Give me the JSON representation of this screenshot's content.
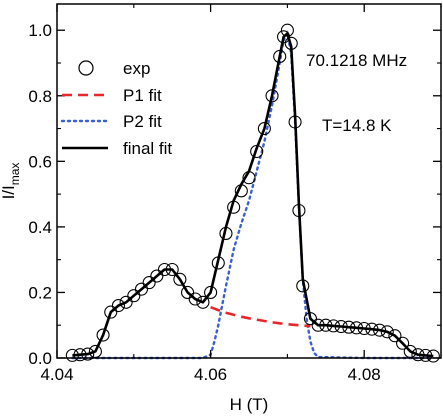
{
  "chart_data": {
    "type": "line",
    "xlabel": "H (T)",
    "ylabel": "I/I",
    "ylabel_subscript": "max",
    "xlim": [
      4.04,
      4.09
    ],
    "ylim": [
      0.0,
      1.08
    ],
    "xticks": [
      4.04,
      4.06,
      4.08
    ],
    "xtick_labels": [
      "4.04",
      "4.06",
      "4.08"
    ],
    "yticks": [
      0.0,
      0.2,
      0.4,
      0.6,
      0.8,
      1.0
    ],
    "ytick_labels": [
      "0.0",
      "0.2",
      "0.4",
      "0.6",
      "0.8",
      "1.0"
    ],
    "grid": false,
    "legend_position": "upper-left",
    "annotations": [
      "70.1218 MHz",
      "T=14.8 K"
    ],
    "series": [
      {
        "name": "exp",
        "style": "open-circle",
        "color": "#000000",
        "x": [
          4.042,
          4.043,
          4.044,
          4.045,
          4.046,
          4.047,
          4.048,
          4.049,
          4.05,
          4.051,
          4.052,
          4.053,
          4.054,
          4.055,
          4.056,
          4.057,
          4.058,
          4.059,
          4.06,
          4.061,
          4.062,
          4.063,
          4.064,
          4.065,
          4.066,
          4.067,
          4.068,
          4.069,
          4.0695,
          4.07,
          4.0705,
          4.071,
          4.0715,
          4.072,
          4.073,
          4.074,
          4.075,
          4.076,
          4.077,
          4.078,
          4.079,
          4.08,
          4.081,
          4.082,
          4.083,
          4.084,
          4.085,
          4.086,
          4.087,
          4.088,
          4.089
        ],
        "y": [
          0.008,
          0.01,
          0.012,
          0.02,
          0.07,
          0.14,
          0.16,
          0.17,
          0.19,
          0.21,
          0.23,
          0.25,
          0.27,
          0.27,
          0.24,
          0.2,
          0.18,
          0.17,
          0.2,
          0.29,
          0.38,
          0.46,
          0.51,
          0.55,
          0.63,
          0.7,
          0.8,
          0.92,
          0.98,
          1.0,
          0.96,
          0.72,
          0.45,
          0.22,
          0.12,
          0.1,
          0.1,
          0.098,
          0.096,
          0.094,
          0.092,
          0.09,
          0.088,
          0.085,
          0.08,
          0.068,
          0.045,
          0.02,
          0.01,
          0.008,
          0.006
        ]
      },
      {
        "name": "P1 fit",
        "style": "dashed",
        "color": "#e8272b",
        "x": [
          4.06,
          4.061,
          4.062,
          4.063,
          4.064,
          4.065,
          4.066,
          4.067,
          4.068,
          4.069,
          4.07,
          4.071,
          4.072,
          4.073
        ],
        "y": [
          0.155,
          0.146,
          0.138,
          0.132,
          0.126,
          0.121,
          0.117,
          0.113,
          0.109,
          0.106,
          0.103,
          0.101,
          0.099,
          0.097
        ]
      },
      {
        "name": "P2 fit",
        "style": "dotted",
        "color": "#3a5fd0",
        "x": [
          4.042,
          4.05,
          4.059,
          4.06,
          4.0605,
          4.061,
          4.0615,
          4.062,
          4.063,
          4.064,
          4.065,
          4.066,
          4.067,
          4.068,
          4.069,
          4.0695,
          4.07,
          4.0705,
          4.071,
          4.0715,
          4.072,
          4.0725,
          4.073,
          4.0735,
          4.074,
          4.08,
          4.089
        ],
        "y": [
          0.0,
          0.0,
          0.0,
          0.01,
          0.05,
          0.1,
          0.16,
          0.22,
          0.33,
          0.41,
          0.48,
          0.57,
          0.66,
          0.77,
          0.9,
          0.97,
          0.99,
          0.93,
          0.72,
          0.46,
          0.24,
          0.12,
          0.05,
          0.015,
          0.003,
          0.0,
          0.0
        ]
      },
      {
        "name": "final fit",
        "style": "solid",
        "color": "#000000",
        "x": [
          4.042,
          4.043,
          4.044,
          4.045,
          4.046,
          4.047,
          4.048,
          4.049,
          4.05,
          4.051,
          4.052,
          4.053,
          4.054,
          4.055,
          4.056,
          4.057,
          4.058,
          4.059,
          4.06,
          4.061,
          4.062,
          4.063,
          4.064,
          4.065,
          4.066,
          4.067,
          4.068,
          4.069,
          4.0695,
          4.07,
          4.0705,
          4.071,
          4.0715,
          4.072,
          4.073,
          4.074,
          4.075,
          4.076,
          4.077,
          4.078,
          4.079,
          4.08,
          4.081,
          4.082,
          4.083,
          4.084,
          4.085,
          4.086,
          4.087,
          4.088,
          4.089
        ],
        "y": [
          0.008,
          0.01,
          0.012,
          0.02,
          0.07,
          0.14,
          0.16,
          0.17,
          0.19,
          0.21,
          0.23,
          0.25,
          0.27,
          0.27,
          0.24,
          0.2,
          0.18,
          0.17,
          0.2,
          0.3,
          0.4,
          0.48,
          0.53,
          0.57,
          0.64,
          0.7,
          0.8,
          0.92,
          0.98,
          0.99,
          0.95,
          0.74,
          0.47,
          0.24,
          0.12,
          0.1,
          0.1,
          0.098,
          0.096,
          0.094,
          0.092,
          0.09,
          0.088,
          0.085,
          0.08,
          0.068,
          0.045,
          0.02,
          0.01,
          0.008,
          0.006
        ]
      }
    ]
  }
}
